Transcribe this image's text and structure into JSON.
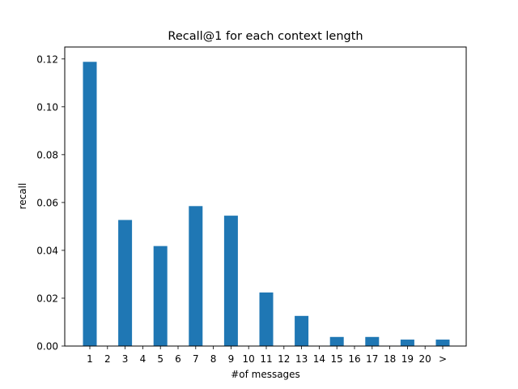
{
  "chart_data": {
    "type": "bar",
    "title": "Recall@1 for each context length",
    "xlabel": "#of messages",
    "ylabel": "recall",
    "categories": [
      "1",
      "2",
      "3",
      "4",
      "5",
      "6",
      "7",
      "8",
      "9",
      "10",
      "11",
      "12",
      "13",
      "14",
      "15",
      "16",
      "17",
      "18",
      "19",
      "20",
      ">"
    ],
    "values": [
      0.1188,
      0,
      0.0527,
      0,
      0.0418,
      0,
      0.0585,
      0,
      0.0545,
      0,
      0.0224,
      0,
      0.0126,
      0,
      0.0038,
      0,
      0.0038,
      0,
      0.0027,
      0,
      0.0027
    ],
    "ylim": [
      0,
      0.125
    ],
    "yticks": [
      "0.00",
      "0.02",
      "0.04",
      "0.06",
      "0.08",
      "0.10",
      "0.12"
    ],
    "grid": false,
    "bar_color": "#1f77b4"
  }
}
